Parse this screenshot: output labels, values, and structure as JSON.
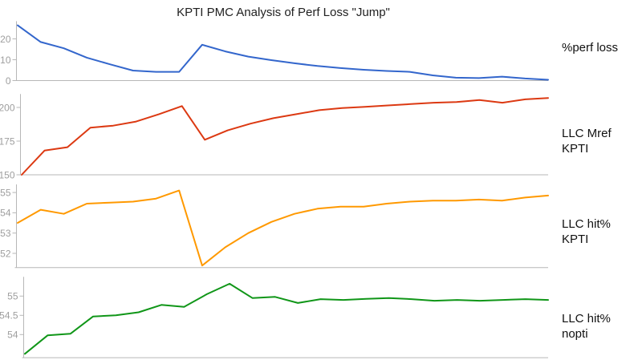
{
  "title": "KPTI PMC Analysis of Perf Loss \"Jump\"",
  "palette": {
    "axis_line": "#b7b7b7",
    "tick_label": "#9e9e9e",
    "title_text": "#212121",
    "series_label_text": "#111111"
  },
  "chart_data": [
    {
      "type": "line",
      "name": "perf-loss",
      "label_lines": [
        "%perf loss"
      ],
      "color": "#3366CC",
      "y_ticks": [
        0,
        10,
        20
      ],
      "ylim": [
        0,
        28.5
      ],
      "grid": false,
      "legend_position": "right",
      "values": [
        26.5,
        18.5,
        15.5,
        11,
        7.8,
        4.8,
        4.2,
        4.2,
        17.2,
        14,
        11.5,
        9.8,
        8.3,
        7,
        6,
        5.2,
        4.6,
        4.2,
        2.5,
        1.4,
        1.2,
        1.9,
        1,
        0.4
      ]
    },
    {
      "type": "line",
      "name": "llc-mref-kpti",
      "label_lines": [
        "LLC Mref",
        "KPTI"
      ],
      "color": "#DC3912",
      "y_ticks": [
        150,
        175,
        200
      ],
      "ylim": [
        150,
        210
      ],
      "grid": false,
      "legend_position": "right",
      "values": [
        150,
        168,
        170.5,
        185,
        186.5,
        189.5,
        195,
        201,
        176,
        183,
        188,
        192,
        195,
        198,
        199.5,
        200.5,
        201.5,
        202.5,
        203.5,
        204,
        205.5,
        203.5,
        206,
        207
      ]
    },
    {
      "type": "line",
      "name": "llc-hit-kpti",
      "label_lines": [
        "LLC hit%",
        "KPTI"
      ],
      "color": "#FF9900",
      "y_ticks": [
        52,
        53,
        54,
        55
      ],
      "ylim": [
        51.3,
        55.4
      ],
      "grid": false,
      "legend_position": "right",
      "values": [
        53.5,
        54.15,
        53.95,
        54.45,
        54.5,
        54.55,
        54.7,
        55.1,
        51.4,
        52.3,
        53,
        53.55,
        53.95,
        54.2,
        54.3,
        54.3,
        54.45,
        54.55,
        54.6,
        54.6,
        54.65,
        54.6,
        54.75,
        54.85
      ]
    },
    {
      "type": "line",
      "name": "llc-hit-nopti",
      "label_lines": [
        "LLC hit%",
        "nopti"
      ],
      "color": "#109618",
      "y_ticks": [
        54,
        54.5,
        55
      ],
      "ylim": [
        53.4,
        55.5
      ],
      "grid": false,
      "legend_position": "right",
      "values": [
        53.5,
        53.98,
        54.02,
        54.47,
        54.5,
        54.58,
        54.77,
        54.72,
        55.05,
        55.32,
        54.95,
        54.98,
        54.82,
        54.92,
        54.9,
        54.93,
        54.95,
        54.92,
        54.88,
        54.9,
        54.88,
        54.9,
        54.92,
        54.9
      ]
    }
  ]
}
